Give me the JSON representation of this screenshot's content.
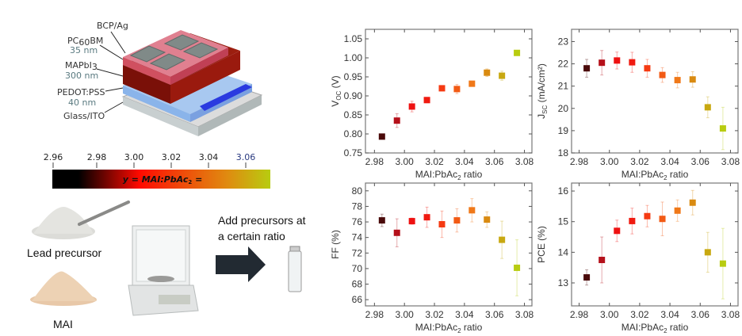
{
  "device": {
    "layers": [
      {
        "name": "BCP/Ag",
        "thickness": ""
      },
      {
        "name": "PC60BM",
        "thickness": "35 nm"
      },
      {
        "name": "MAPbI3",
        "thickness": "300 nm"
      },
      {
        "name": "PEDOT:PSS",
        "thickness": "40 nm"
      },
      {
        "name": "Glass/ITO",
        "thickness": ""
      }
    ],
    "pc_main": "PC",
    "pc_sub": "60",
    "pc_rest": "BM",
    "map_main": "MAPbI",
    "map_sub": "3"
  },
  "colorbar": {
    "ticks": [
      "2.96",
      "2.98",
      "3.00",
      "3.02",
      "3.04",
      "3.06"
    ],
    "label_main": "y = MAI:PbAc",
    "label_sub": "2",
    "label_rest": " =",
    "colors": [
      "#000000",
      "#1a0000",
      "#ff0a00",
      "#f07010",
      "#e0a020",
      "#b8cc10"
    ]
  },
  "process": {
    "lead_label": "Lead precursor",
    "mai_label": "MAI",
    "step_line1": "Add precursors at",
    "step_line2": "a certain ratio"
  },
  "chart_data": [
    {
      "type": "scatter",
      "title": "",
      "xlabel_main": "MAI:PbAc",
      "xlabel_sub": "2",
      "xlabel_rest": " ratio",
      "ylabel_main": "V",
      "ylabel_sub": "OC",
      "ylabel_rest": " (V)",
      "xlim": [
        2.974,
        3.085
      ],
      "ylim": [
        0.75,
        1.075
      ],
      "xticks": [
        "2.98",
        "3.00",
        "3.02",
        "3.04",
        "3.06",
        "3.08"
      ],
      "yticks": [
        "0.75",
        "0.80",
        "0.85",
        "0.90",
        "0.95",
        "1.00",
        "1.05"
      ],
      "x": [
        2.985,
        2.995,
        3.005,
        3.015,
        3.025,
        3.035,
        3.045,
        3.055,
        3.065,
        3.075
      ],
      "y": [
        0.793,
        0.835,
        0.872,
        0.889,
        0.92,
        0.918,
        0.932,
        0.961,
        0.953,
        1.013
      ],
      "yerr": [
        0.006,
        0.018,
        0.014,
        0.007,
        0.006,
        0.012,
        0.006,
        0.01,
        0.012,
        0.006
      ]
    },
    {
      "type": "scatter",
      "title": "",
      "xlabel_main": "MAI:PbAc",
      "xlabel_sub": "2",
      "xlabel_rest": " ratio",
      "ylabel_main": "J",
      "ylabel_sub": "SC",
      "ylabel_rest": " (mA/cm²)",
      "xlim": [
        2.975,
        3.085
      ],
      "ylim": [
        18,
        23.55
      ],
      "xticks": [
        "2.98",
        "3.00",
        "3.02",
        "3.04",
        "3.06",
        "3.08"
      ],
      "yticks": [
        "18",
        "19",
        "20",
        "21",
        "22",
        "23"
      ],
      "x": [
        2.985,
        2.995,
        3.005,
        3.015,
        3.025,
        3.035,
        3.045,
        3.055,
        3.065,
        3.075
      ],
      "y": [
        21.8,
        22.05,
        22.15,
        22.07,
        21.8,
        21.5,
        21.27,
        21.3,
        20.05,
        19.1
      ],
      "yerr": [
        0.4,
        0.55,
        0.38,
        0.45,
        0.4,
        0.33,
        0.35,
        0.35,
        0.47,
        0.95
      ]
    },
    {
      "type": "scatter",
      "title": "",
      "xlabel_main": "MAI:PbAc",
      "xlabel_sub": "2",
      "xlabel_rest": " ratio",
      "ylabel_main": "FF",
      "ylabel_sub": "",
      "ylabel_rest": " (%)",
      "xlim": [
        2.974,
        3.085
      ],
      "ylim": [
        65.2,
        81
      ],
      "xticks": [
        "2.98",
        "3.00",
        "3.02",
        "3.04",
        "3.06",
        "3.08"
      ],
      "yticks": [
        "66",
        "68",
        "70",
        "72",
        "74",
        "76",
        "78",
        "80"
      ],
      "x": [
        2.985,
        2.995,
        3.005,
        3.015,
        3.025,
        3.035,
        3.045,
        3.055,
        3.065,
        3.075
      ],
      "y": [
        76.2,
        74.6,
        76.1,
        76.6,
        75.7,
        76.2,
        77.5,
        76.3,
        73.7,
        70.1
      ],
      "yerr": [
        0.8,
        1.8,
        0.4,
        1.3,
        1.7,
        1.5,
        1.5,
        1.0,
        2.4,
        3.6
      ]
    },
    {
      "type": "scatter",
      "title": "",
      "xlabel_main": "MAI:PbAc",
      "xlabel_sub": "2",
      "xlabel_rest": " ratio",
      "ylabel_main": "PCE",
      "ylabel_sub": "",
      "ylabel_rest": " (%)",
      "xlim": [
        2.975,
        3.085
      ],
      "ylim": [
        12.25,
        16.26
      ],
      "xticks": [
        "2.98",
        "3.00",
        "3.02",
        "3.04",
        "3.06",
        "3.08"
      ],
      "yticks": [
        "13",
        "14",
        "15",
        "16"
      ],
      "x": [
        2.985,
        2.995,
        3.005,
        3.015,
        3.025,
        3.035,
        3.045,
        3.055,
        3.065,
        3.075
      ],
      "y": [
        13.18,
        13.75,
        14.7,
        15.02,
        15.18,
        15.09,
        15.36,
        15.62,
        14.0,
        13.63
      ],
      "yerr": [
        0.25,
        0.75,
        0.35,
        0.42,
        0.35,
        0.55,
        0.35,
        0.4,
        0.65,
        1.15
      ]
    }
  ],
  "point_colors": [
    "#4a0a0a",
    "#b5101a",
    "#ee1111",
    "#f01a10",
    "#f53a12",
    "#f25a14",
    "#f07818",
    "#d98a10",
    "#c8a810",
    "#b8cc10"
  ]
}
